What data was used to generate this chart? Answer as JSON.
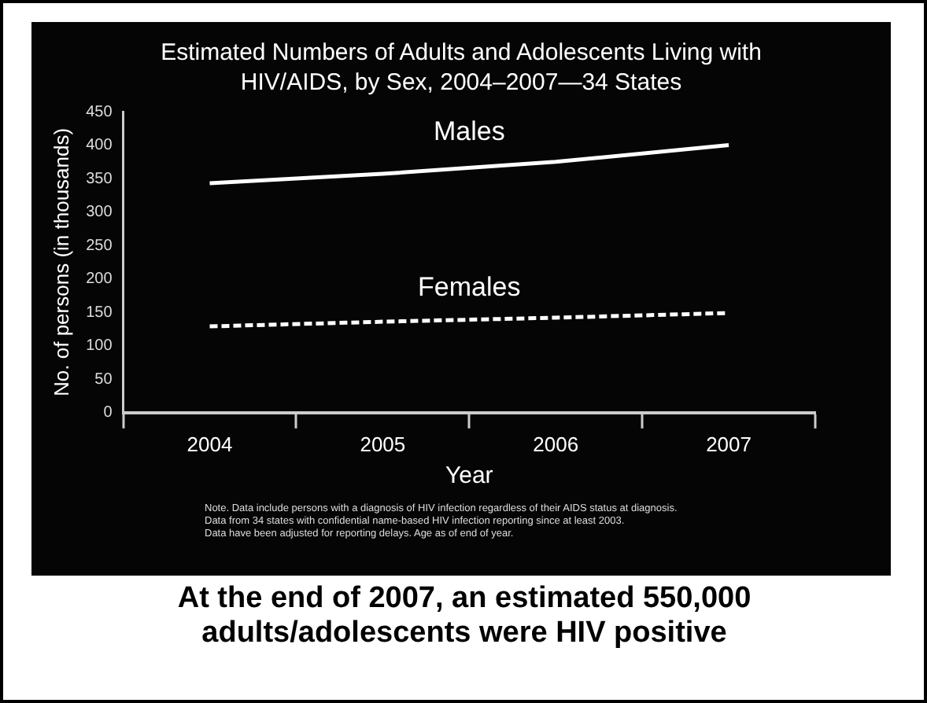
{
  "chart_data": {
    "type": "line",
    "title": "Estimated Numbers of Adults and Adolescents Living with HIV/AIDS, by Sex, 2004–2007—34 States",
    "xlabel": "Year",
    "ylabel": "No. of persons (in thousands)",
    "categories": [
      "2004",
      "2005",
      "2006",
      "2007"
    ],
    "series": [
      {
        "name": "Males",
        "color": "#ffffff",
        "line_style": "solid",
        "values": [
          343,
          357,
          375,
          400
        ]
      },
      {
        "name": "Females",
        "color": "#ffffff",
        "line_style": "dashed",
        "values": [
          129,
          136,
          142,
          149
        ]
      }
    ],
    "ylim": [
      0,
      450
    ],
    "yticks": [
      0,
      50,
      100,
      150,
      200,
      250,
      300,
      350,
      400,
      450
    ],
    "grid": false,
    "legend": false,
    "marker": "none",
    "annotations": [
      "Note. Data include persons with a diagnosis of HIV infection regardless of their AIDS status at diagnosis.",
      "Data from 34 states with confidential name-based HIV infection reporting since at least 2003.",
      "Data have been adjusted for reporting delays. Age as of end of year.",
      "At the end of 2007, an estimated 550,000 adults/adolescents were HIV positive"
    ]
  }
}
